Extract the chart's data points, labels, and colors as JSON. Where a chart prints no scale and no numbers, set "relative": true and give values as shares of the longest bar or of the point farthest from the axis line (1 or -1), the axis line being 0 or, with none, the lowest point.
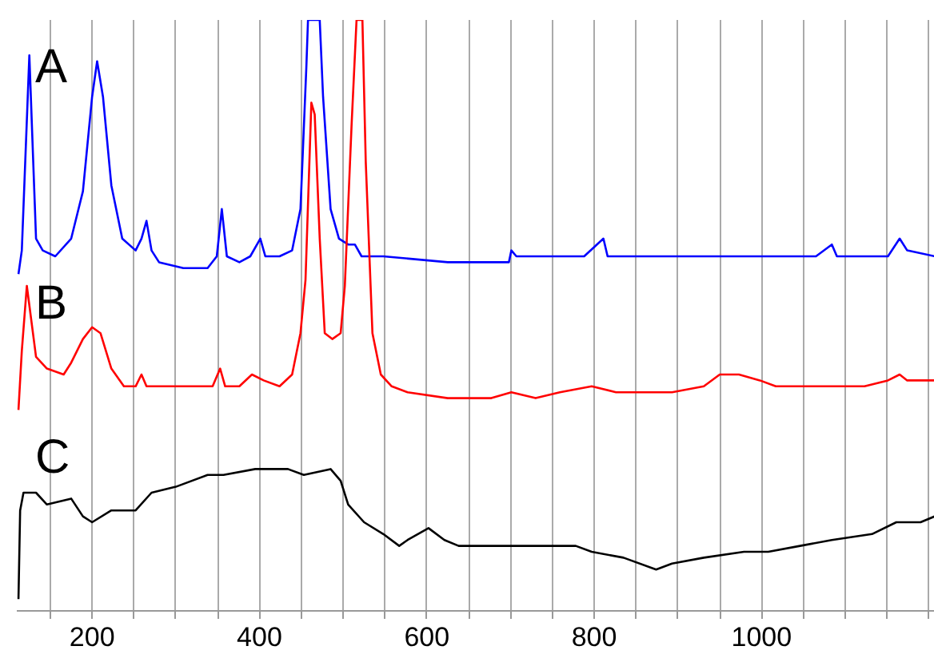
{
  "chart_data": {
    "type": "line",
    "relative": true,
    "grid": "x",
    "marker": "none",
    "line_style": "solid",
    "xlim": [
      110,
      1207
    ],
    "xticks": [
      {
        "value": 150,
        "label": null
      },
      200,
      {
        "value": 250,
        "label": null
      },
      {
        "value": 300,
        "label": null
      },
      {
        "value": 350,
        "label": null
      },
      400,
      {
        "value": 450,
        "label": null
      },
      {
        "value": 500,
        "label": null
      },
      {
        "value": 550,
        "label": null
      },
      600,
      {
        "value": 650,
        "label": null
      },
      {
        "value": 700,
        "label": null
      },
      {
        "value": 750,
        "label": null
      },
      800,
      {
        "value": 850,
        "label": null
      },
      {
        "value": 900,
        "label": null
      },
      {
        "value": 950,
        "label": null
      },
      1000,
      {
        "value": 1050,
        "label": null
      },
      {
        "value": 1100,
        "label": null
      },
      {
        "value": 1150,
        "label": null
      },
      {
        "value": 1200,
        "label": null
      }
    ],
    "series": [
      {
        "name": "A",
        "color": "#0000ff",
        "x": [
          112,
          116,
          125,
          133,
          141,
          156,
          175,
          189,
          200,
          206,
          213,
          223,
          236,
          252,
          259,
          265,
          271,
          280,
          309,
          338,
          349,
          355,
          361,
          376,
          389,
          401,
          407,
          424,
          439,
          449,
          456,
          458,
          472,
          476,
          485,
          495,
          506,
          514,
          522,
          548,
          625,
          663,
          698,
          701,
          707,
          759,
          788,
          811,
          816,
          855,
          950,
          1065,
          1084,
          1090,
          1151,
          1165,
          1174,
          1207
        ],
        "values": [
          0.57,
          0.61,
          0.94,
          0.63,
          0.61,
          0.6,
          0.63,
          0.71,
          0.87,
          0.93,
          0.87,
          0.72,
          0.63,
          0.61,
          0.63,
          0.66,
          0.61,
          0.59,
          0.58,
          0.58,
          0.6,
          0.68,
          0.6,
          0.59,
          0.6,
          0.63,
          0.6,
          0.6,
          0.61,
          0.68,
          0.92,
          1.0,
          1.0,
          0.87,
          0.68,
          0.63,
          0.62,
          0.62,
          0.6,
          0.6,
          0.59,
          0.59,
          0.59,
          0.61,
          0.6,
          0.6,
          0.6,
          0.63,
          0.6,
          0.6,
          0.6,
          0.6,
          0.62,
          0.6,
          0.6,
          0.63,
          0.61,
          0.6
        ]
      },
      {
        "name": "B",
        "color": "#ff0000",
        "x": [
          112,
          116,
          122,
          133,
          146,
          166,
          175,
          189,
          200,
          210,
          223,
          238,
          252,
          259,
          265,
          300,
          322,
          344,
          353,
          359,
          376,
          391,
          405,
          424,
          439,
          449,
          455,
          462,
          466,
          472,
          478,
          487,
          497,
          502,
          510,
          516,
          523,
          527,
          535,
          545,
          558,
          577,
          625,
          663,
          677,
          701,
          730,
          759,
          797,
          826,
          893,
          931,
          950,
          973,
          998,
          1017,
          1056,
          1084,
          1123,
          1151,
          1165,
          1174,
          1207
        ],
        "values": [
          0.34,
          0.44,
          0.55,
          0.43,
          0.41,
          0.4,
          0.42,
          0.46,
          0.48,
          0.47,
          0.41,
          0.38,
          0.38,
          0.4,
          0.38,
          0.38,
          0.38,
          0.38,
          0.41,
          0.38,
          0.38,
          0.4,
          0.39,
          0.38,
          0.4,
          0.47,
          0.56,
          0.86,
          0.84,
          0.63,
          0.47,
          0.46,
          0.47,
          0.55,
          0.82,
          1.0,
          1.0,
          0.76,
          0.47,
          0.4,
          0.38,
          0.37,
          0.36,
          0.36,
          0.36,
          0.37,
          0.36,
          0.37,
          0.38,
          0.37,
          0.37,
          0.38,
          0.4,
          0.4,
          0.39,
          0.38,
          0.38,
          0.38,
          0.38,
          0.39,
          0.4,
          0.39,
          0.39
        ]
      },
      {
        "name": "C",
        "color": "#000000",
        "x": [
          112,
          114,
          118,
          133,
          146,
          175,
          189,
          200,
          223,
          252,
          271,
          300,
          338,
          357,
          395,
          434,
          453,
          485,
          497,
          506,
          525,
          548,
          567,
          577,
          602,
          621,
          638,
          663,
          721,
          778,
          797,
          835,
          874,
          893,
          931,
          979,
          1008,
          1046,
          1084,
          1132,
          1161,
          1190,
          1207
        ],
        "values": [
          0.02,
          0.17,
          0.2,
          0.2,
          0.18,
          0.19,
          0.16,
          0.15,
          0.17,
          0.17,
          0.2,
          0.21,
          0.23,
          0.23,
          0.24,
          0.24,
          0.23,
          0.24,
          0.22,
          0.18,
          0.15,
          0.13,
          0.11,
          0.12,
          0.14,
          0.12,
          0.11,
          0.11,
          0.11,
          0.11,
          0.1,
          0.09,
          0.07,
          0.08,
          0.09,
          0.1,
          0.1,
          0.11,
          0.12,
          0.13,
          0.15,
          0.15,
          0.16
        ]
      }
    ]
  }
}
